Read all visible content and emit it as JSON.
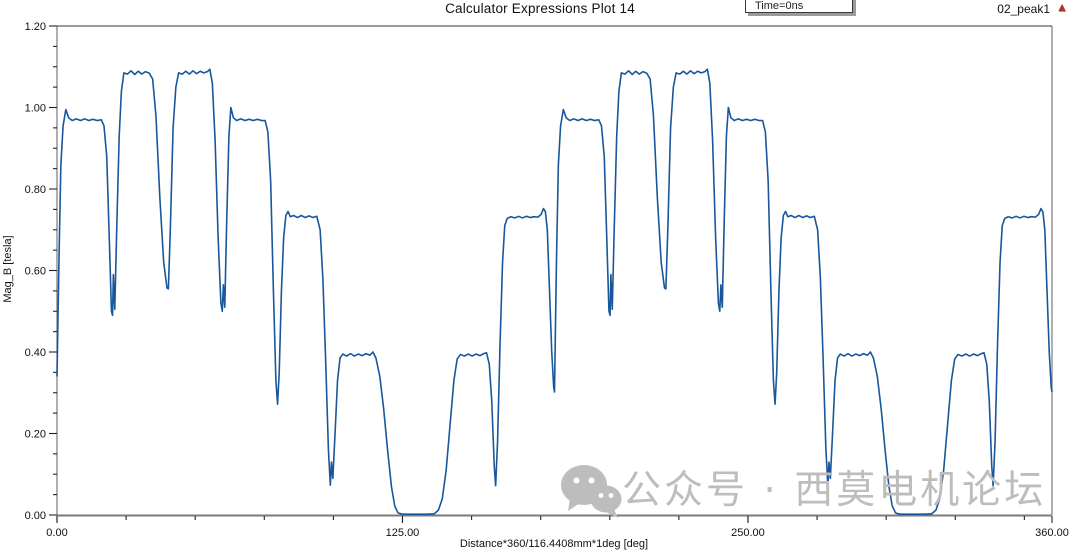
{
  "title": "Calculator Expressions Plot 14",
  "legend_box": {
    "label": "Time=0ns"
  },
  "series_header": {
    "name": "02_peak1",
    "marker_icon": "red-triangle",
    "marker_glyph": "▲",
    "marker_color": "#b23528"
  },
  "watermark": {
    "icon": "wechat-logo",
    "text": "公众号 · 西莫电机论坛",
    "color": "#bdbdbd"
  },
  "colors": {
    "curve": "#18579B",
    "plot_border": "#7a7a7a",
    "tick": "#222222",
    "text": "#111111",
    "background": "#ffffff"
  },
  "chart_data": {
    "type": "line",
    "title": "Calculator Expressions Plot 14",
    "xlabel": "Distance*360/116.4408mm*1deg [deg]",
    "ylabel": "Mag_B [tesla]",
    "xlim": [
      0,
      360
    ],
    "ylim": [
      0,
      1.2
    ],
    "grid": false,
    "legend": {
      "position": "top-center",
      "entries": [
        "Time=0ns"
      ]
    },
    "x_major_ticks": [
      0,
      125,
      250,
      360
    ],
    "x_tick_labels": [
      "0.00",
      "125.00",
      "250.00",
      "360.00"
    ],
    "x_minor_step": 25,
    "y_major_ticks": [
      0,
      0.2,
      0.4,
      0.6,
      0.8,
      1.0,
      1.2
    ],
    "y_tick_labels": [
      "0.00",
      "0.20",
      "0.40",
      "0.60",
      "0.80",
      "1.00",
      "1.20"
    ],
    "y_minor_step": 0.05,
    "series": [
      {
        "name": "02_peak1",
        "color": "#18579B",
        "description": "Air-gap flux density magnitude vs angular distance; waveform repeats every 180 deg (2 periods across 0-360 deg). Plateaus ~0.97 T, ~1.09 T, ~0.73 T, ~0.40 T and a zero-flat section, separated by narrow notches.",
        "period_deg": 180,
        "periods": 2,
        "points_one_period": [
          [
            0.0,
            0.34
          ],
          [
            0.7,
            0.62
          ],
          [
            1.4,
            0.86
          ],
          [
            2.2,
            0.955
          ],
          [
            3.2,
            0.995
          ],
          [
            4.2,
            0.975
          ],
          [
            5.5,
            0.968
          ],
          [
            7.0,
            0.972
          ],
          [
            8.5,
            0.968
          ],
          [
            10.0,
            0.972
          ],
          [
            11.5,
            0.968
          ],
          [
            13.0,
            0.971
          ],
          [
            14.5,
            0.968
          ],
          [
            16.0,
            0.97
          ],
          [
            17.0,
            0.955
          ],
          [
            18.0,
            0.88
          ],
          [
            19.0,
            0.66
          ],
          [
            19.7,
            0.5
          ],
          [
            20.1,
            0.49
          ],
          [
            20.4,
            0.59
          ],
          [
            20.9,
            0.505
          ],
          [
            21.6,
            0.7
          ],
          [
            22.5,
            0.93
          ],
          [
            23.3,
            1.04
          ],
          [
            24.2,
            1.085
          ],
          [
            25.5,
            1.082
          ],
          [
            26.8,
            1.09
          ],
          [
            28.1,
            1.081
          ],
          [
            29.4,
            1.089
          ],
          [
            30.7,
            1.082
          ],
          [
            32.0,
            1.088
          ],
          [
            33.4,
            1.084
          ],
          [
            34.6,
            1.07
          ],
          [
            35.8,
            0.98
          ],
          [
            37.2,
            0.78
          ],
          [
            38.6,
            0.62
          ],
          [
            39.8,
            0.557
          ],
          [
            40.3,
            0.555
          ],
          [
            41.0,
            0.7
          ],
          [
            42.0,
            0.95
          ],
          [
            43.0,
            1.05
          ],
          [
            44.0,
            1.085
          ],
          [
            45.3,
            1.082
          ],
          [
            46.6,
            1.089
          ],
          [
            47.9,
            1.082
          ],
          [
            49.2,
            1.09
          ],
          [
            50.5,
            1.083
          ],
          [
            51.8,
            1.089
          ],
          [
            53.1,
            1.085
          ],
          [
            54.4,
            1.088
          ],
          [
            55.3,
            1.094
          ],
          [
            56.2,
            1.06
          ],
          [
            57.2,
            0.92
          ],
          [
            58.3,
            0.68
          ],
          [
            59.3,
            0.52
          ],
          [
            59.8,
            0.5
          ],
          [
            60.2,
            0.565
          ],
          [
            60.7,
            0.51
          ],
          [
            61.4,
            0.72
          ],
          [
            62.2,
            0.93
          ],
          [
            62.9,
            1.0
          ],
          [
            63.8,
            0.975
          ],
          [
            65.0,
            0.968
          ],
          [
            66.5,
            0.972
          ],
          [
            68.0,
            0.968
          ],
          [
            69.5,
            0.971
          ],
          [
            71.0,
            0.968
          ],
          [
            72.5,
            0.971
          ],
          [
            74.0,
            0.968
          ],
          [
            75.3,
            0.968
          ],
          [
            76.3,
            0.94
          ],
          [
            77.3,
            0.82
          ],
          [
            78.3,
            0.55
          ],
          [
            79.2,
            0.33
          ],
          [
            79.8,
            0.272
          ],
          [
            80.4,
            0.35
          ],
          [
            81.2,
            0.55
          ],
          [
            82.0,
            0.68
          ],
          [
            82.8,
            0.735
          ],
          [
            83.6,
            0.745
          ],
          [
            84.4,
            0.732
          ],
          [
            85.6,
            0.735
          ],
          [
            87.0,
            0.73
          ],
          [
            88.4,
            0.735
          ],
          [
            89.8,
            0.73
          ],
          [
            91.2,
            0.734
          ],
          [
            92.6,
            0.73
          ],
          [
            94.0,
            0.733
          ],
          [
            95.2,
            0.7
          ],
          [
            96.2,
            0.58
          ],
          [
            97.2,
            0.38
          ],
          [
            98.2,
            0.16
          ],
          [
            98.9,
            0.073
          ],
          [
            99.3,
            0.13
          ],
          [
            99.8,
            0.09
          ],
          [
            100.6,
            0.2
          ],
          [
            101.5,
            0.33
          ],
          [
            102.4,
            0.385
          ],
          [
            103.4,
            0.395
          ],
          [
            104.8,
            0.39
          ],
          [
            106.2,
            0.396
          ],
          [
            107.6,
            0.39
          ],
          [
            109.0,
            0.395
          ],
          [
            110.4,
            0.391
          ],
          [
            111.8,
            0.396
          ],
          [
            113.2,
            0.392
          ],
          [
            114.3,
            0.4
          ],
          [
            115.4,
            0.385
          ],
          [
            116.8,
            0.34
          ],
          [
            118.2,
            0.26
          ],
          [
            119.6,
            0.16
          ],
          [
            121.0,
            0.07
          ],
          [
            122.2,
            0.022
          ],
          [
            123.4,
            0.005
          ],
          [
            125.0,
            0.002
          ],
          [
            128.0,
            0.002
          ],
          [
            131.0,
            0.002
          ],
          [
            134.0,
            0.002
          ],
          [
            136.5,
            0.003
          ],
          [
            138.0,
            0.012
          ],
          [
            139.4,
            0.04
          ],
          [
            140.8,
            0.11
          ],
          [
            142.2,
            0.22
          ],
          [
            143.6,
            0.33
          ],
          [
            144.8,
            0.383
          ],
          [
            146.0,
            0.394
          ],
          [
            147.4,
            0.39
          ],
          [
            148.8,
            0.395
          ],
          [
            150.2,
            0.39
          ],
          [
            151.6,
            0.395
          ],
          [
            153.0,
            0.391
          ],
          [
            154.4,
            0.396
          ],
          [
            155.4,
            0.398
          ],
          [
            156.4,
            0.37
          ],
          [
            157.3,
            0.28
          ],
          [
            158.2,
            0.12
          ],
          [
            158.7,
            0.072
          ],
          [
            159.4,
            0.18
          ],
          [
            160.3,
            0.42
          ],
          [
            161.2,
            0.62
          ],
          [
            162.0,
            0.71
          ],
          [
            162.9,
            0.728
          ],
          [
            164.2,
            0.732
          ],
          [
            165.6,
            0.729
          ],
          [
            167.0,
            0.733
          ],
          [
            168.4,
            0.729
          ],
          [
            169.8,
            0.733
          ],
          [
            171.2,
            0.73
          ],
          [
            172.6,
            0.732
          ],
          [
            174.0,
            0.731
          ],
          [
            175.2,
            0.738
          ],
          [
            176.0,
            0.752
          ],
          [
            176.7,
            0.744
          ],
          [
            177.4,
            0.7
          ],
          [
            178.2,
            0.55
          ],
          [
            179.0,
            0.4
          ],
          [
            179.7,
            0.315
          ],
          [
            180.0,
            0.302
          ]
        ]
      }
    ]
  }
}
